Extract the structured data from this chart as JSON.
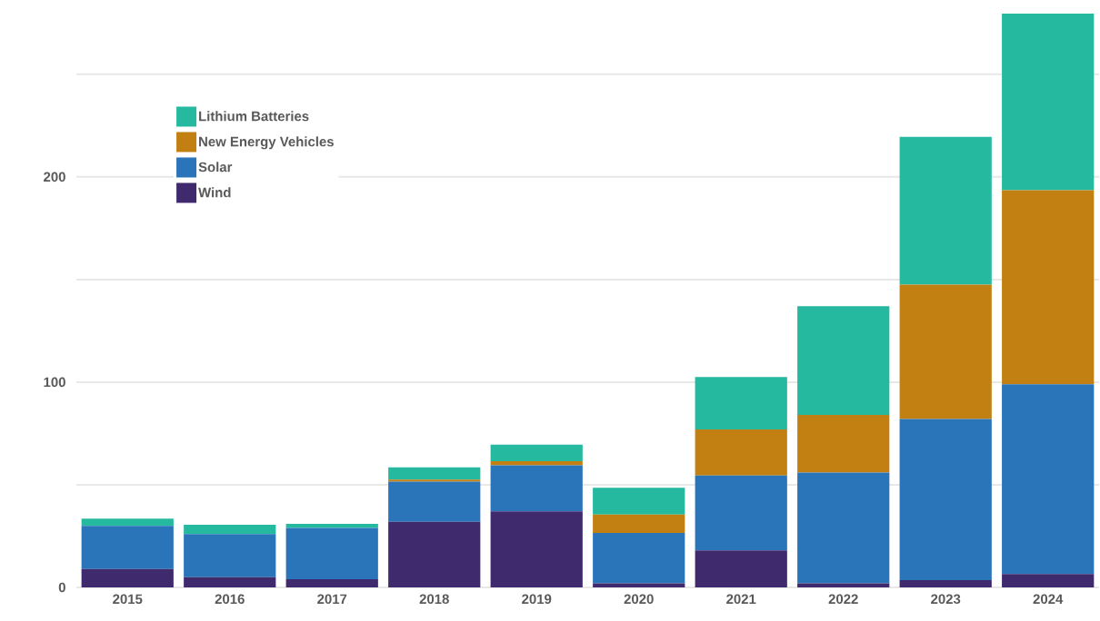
{
  "chart_data": {
    "type": "bar",
    "stacked": true,
    "categories": [
      "2015",
      "2016",
      "2017",
      "2018",
      "2019",
      "2020",
      "2021",
      "2022",
      "2023",
      "2024"
    ],
    "series": [
      {
        "name": "Wind",
        "color": "#3f2a6e",
        "values": [
          9,
          5,
          4,
          32,
          37,
          2,
          18,
          2,
          3.5,
          6.5
        ]
      },
      {
        "name": "Solar",
        "color": "#2a74ba",
        "values": [
          21,
          21,
          25,
          19.5,
          22.5,
          24.5,
          36.5,
          54,
          78.5,
          92.5
        ]
      },
      {
        "name": "New Energy Vehicles",
        "color": "#c28012",
        "values": [
          0,
          0,
          0,
          1,
          2,
          9,
          22.5,
          28,
          65.5,
          94.5
        ]
      },
      {
        "name": "Lithium Batteries",
        "color": "#25ba9f",
        "values": [
          3.5,
          4.5,
          2,
          6,
          8,
          13,
          25.5,
          53,
          72,
          86
        ]
      }
    ],
    "ylim": [
      0,
      280
    ],
    "yticks": [
      0,
      {
        "value": 50,
        "label": null
      },
      100,
      {
        "value": 150,
        "label": null
      },
      200,
      {
        "value": 250,
        "label": null
      }
    ],
    "grid": "y",
    "legend": "top left"
  }
}
